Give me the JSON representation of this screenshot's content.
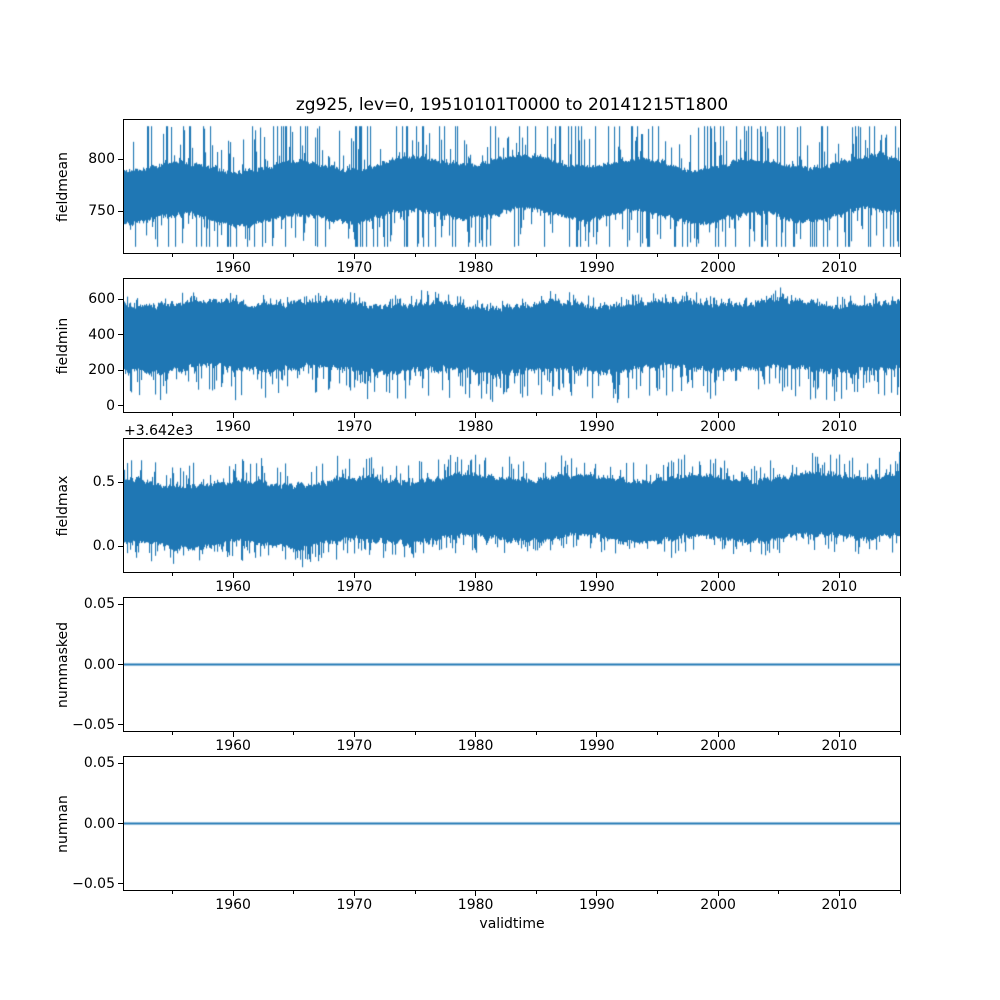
{
  "figure": {
    "title": "zg925, lev=0, 19510101T0000 to 20141215T1800",
    "xlabel": "validtime",
    "background_color": "#ffffff",
    "line_color": "#1f77b4",
    "axis_color": "#000000",
    "time_start": "19510101T0000",
    "time_end": "20141215T1800"
  },
  "x_axis": {
    "range_years": [
      1951,
      2015
    ],
    "major_ticks": [
      1960,
      1970,
      1980,
      1990,
      2000,
      2010
    ],
    "major_tick_labels": [
      "1960",
      "1970",
      "1980",
      "1990",
      "2000",
      "2010"
    ],
    "minor_ticks": [
      1955,
      1965,
      1975,
      1985,
      1995,
      2005,
      2015
    ]
  },
  "chart_data": [
    {
      "type": "line",
      "ylabel": "fieldmean",
      "ylim": [
        710,
        838
      ],
      "y_ticks": [
        {
          "value": 750,
          "label": "750"
        },
        {
          "value": 800,
          "label": "800"
        }
      ],
      "series": {
        "name": "fieldmean",
        "style": "dense-noise",
        "n_points_approx": 93432,
        "mean": 771,
        "band_half": 32,
        "spike_up": 60,
        "spike_down": 54,
        "spike_prob_up": 0.3,
        "spike_prob_down": 0.3,
        "clip_min": 716,
        "clip_max": 832,
        "trend": 4,
        "wiggle": 5,
        "seed": 11
      }
    },
    {
      "type": "line",
      "ylabel": "fieldmin",
      "ylim": [
        -34,
        714
      ],
      "y_ticks": [
        {
          "value": 0,
          "label": "0"
        },
        {
          "value": 200,
          "label": "200"
        },
        {
          "value": 400,
          "label": "400"
        },
        {
          "value": 600,
          "label": "600"
        }
      ],
      "series": {
        "name": "fieldmin",
        "style": "dense-noise",
        "n_points_approx": 93432,
        "mean": 388,
        "band_half": 232,
        "spike_up": 58,
        "spike_down": 165,
        "spike_prob_up": 0.22,
        "spike_prob_down": 0.35,
        "clip_min": 2,
        "clip_max": 680,
        "trend": 0,
        "wiggle": 14,
        "seed": 22
      }
    },
    {
      "type": "line",
      "ylabel": "fieldmax",
      "offset_text": "+3.642e3",
      "y_offset": 3642,
      "ylim": [
        -0.2,
        0.84
      ],
      "y_ticks": [
        {
          "value": 0.0,
          "label": "0.0"
        },
        {
          "value": 0.5,
          "label": "0.5"
        }
      ],
      "series": {
        "name": "fieldmax",
        "style": "dense-noise",
        "n_points_approx": 93432,
        "mean": 0.29,
        "band_half": 0.3,
        "spike_up": 0.17,
        "spike_down": 0.13,
        "spike_prob_up": 0.28,
        "spike_prob_down": 0.28,
        "clip_min": -0.17,
        "clip_max": 0.8,
        "trend": 0.07,
        "wiggle": 0.025,
        "seed": 33
      }
    },
    {
      "type": "line",
      "ylabel": "nummasked",
      "ylim": [
        -0.055,
        0.055
      ],
      "y_ticks": [
        {
          "value": -0.05,
          "label": "−0.05"
        },
        {
          "value": 0,
          "label": "0.00"
        },
        {
          "value": 0.05,
          "label": "0.05"
        }
      ],
      "series": {
        "name": "nummasked",
        "style": "constant",
        "value": 0,
        "n_points_approx": 93432
      }
    },
    {
      "type": "line",
      "ylabel": "numnan",
      "ylim": [
        -0.055,
        0.055
      ],
      "y_ticks": [
        {
          "value": -0.05,
          "label": "−0.05"
        },
        {
          "value": 0,
          "label": "0.00"
        },
        {
          "value": 0.05,
          "label": "0.05"
        }
      ],
      "series": {
        "name": "numnan",
        "style": "constant",
        "value": 0,
        "n_points_approx": 93432
      }
    }
  ]
}
